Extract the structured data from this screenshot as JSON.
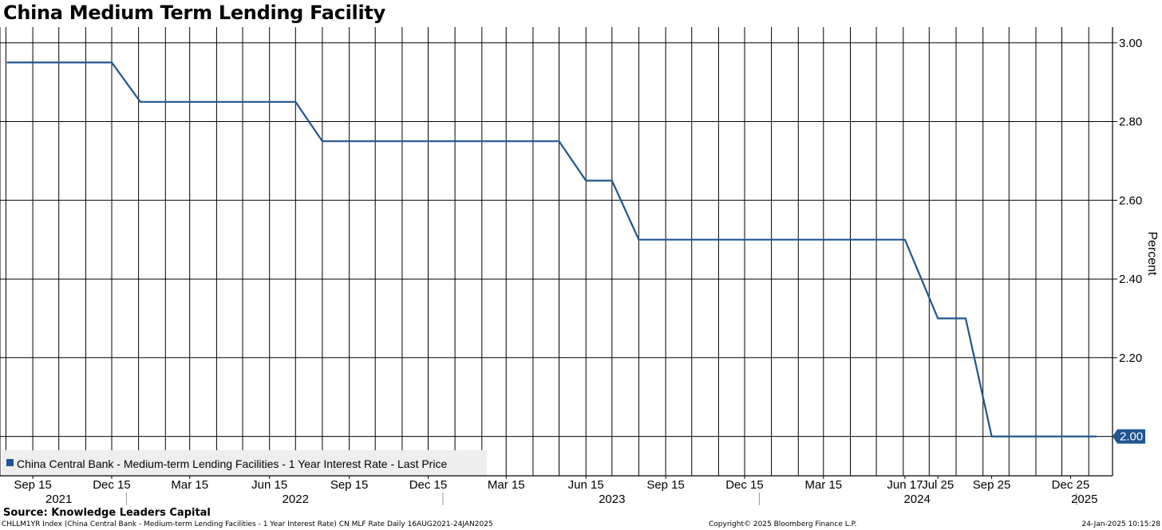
{
  "chart_data": {
    "type": "line",
    "title": "China Medium Term Lending Facility",
    "ylabel": "Percent",
    "ylim": [
      1.9,
      3.04
    ],
    "yticks": [
      2.2,
      2.4,
      2.6,
      2.8,
      3.0
    ],
    "ytick_labels": [
      "2.20",
      "2.40",
      "2.60",
      "2.80",
      "3.00"
    ],
    "x_range": [
      "2021-08-16",
      "2025-01-24"
    ],
    "series": [
      {
        "name": "China Central Bank - Medium-term Lending Facilities - 1 Year Interest Rate - Last Price",
        "color": "#1f5591",
        "points": [
          [
            "2021-08-16",
            2.95
          ],
          [
            "2021-12-15",
            2.95
          ],
          [
            "2022-01-17",
            2.85
          ],
          [
            "2022-07-15",
            2.85
          ],
          [
            "2022-08-15",
            2.75
          ],
          [
            "2023-05-15",
            2.75
          ],
          [
            "2023-06-15",
            2.65
          ],
          [
            "2023-07-15",
            2.65
          ],
          [
            "2023-08-15",
            2.5
          ],
          [
            "2024-06-17",
            2.5
          ],
          [
            "2024-07-25",
            2.3
          ],
          [
            "2024-08-26",
            2.3
          ],
          [
            "2024-09-25",
            2.0
          ],
          [
            "2025-01-24",
            2.0
          ]
        ]
      }
    ],
    "last_value_label": "2.00",
    "xtick_labels": [
      {
        "date": "2021-09-15",
        "label": "Sep 15"
      },
      {
        "date": "2021-12-15",
        "label": "Dec 15"
      },
      {
        "date": "2022-03-15",
        "label": "Mar 15"
      },
      {
        "date": "2022-06-15",
        "label": "Jun 15"
      },
      {
        "date": "2022-09-15",
        "label": "Sep 15"
      },
      {
        "date": "2022-12-15",
        "label": "Dec 15"
      },
      {
        "date": "2023-03-15",
        "label": "Mar 15"
      },
      {
        "date": "2023-06-15",
        "label": "Jun 15"
      },
      {
        "date": "2023-09-15",
        "label": "Sep 15"
      },
      {
        "date": "2023-12-15",
        "label": "Dec 15"
      },
      {
        "date": "2024-03-15",
        "label": "Mar 15"
      },
      {
        "date": "2024-06-17",
        "label": "Jun 17"
      },
      {
        "date": "2024-07-25",
        "label": "Jul 25"
      },
      {
        "date": "2024-09-25",
        "label": "Sep 25"
      },
      {
        "date": "2024-12-25",
        "label": "Dec 25"
      }
    ],
    "year_labels": [
      {
        "date": "2021-10-15",
        "label": "2021"
      },
      {
        "date": "2022-07-15",
        "label": "2022"
      },
      {
        "date": "2023-07-15",
        "label": "2023"
      },
      {
        "date": "2024-07-01",
        "label": "2024"
      },
      {
        "date": "2025-01-10",
        "label": "2025"
      }
    ],
    "year_boundaries": [
      "2022-01-01",
      "2023-01-01",
      "2024-01-01",
      "2025-01-01"
    ],
    "grid": true,
    "grid_start_date": "2021-08-15",
    "grid_end_date": "2025-01-15",
    "legend_position": "bottom-left"
  },
  "footer": {
    "source": "Source: Knowledge Leaders Capital",
    "description": "CHLLM1YR Index (China Central Bank - Medium-term Lending Facilities - 1 Year Interest Rate) CN MLF Rate  Daily 16AUG2021-24JAN2025",
    "copyright": "Copyright© 2025 Bloomberg Finance L.P.",
    "timestamp": "24-Jan-2025 10:15:28"
  },
  "colors": {
    "line": "#1f5591",
    "grid": "#000000",
    "legend_bg": "#eeeeee"
  }
}
